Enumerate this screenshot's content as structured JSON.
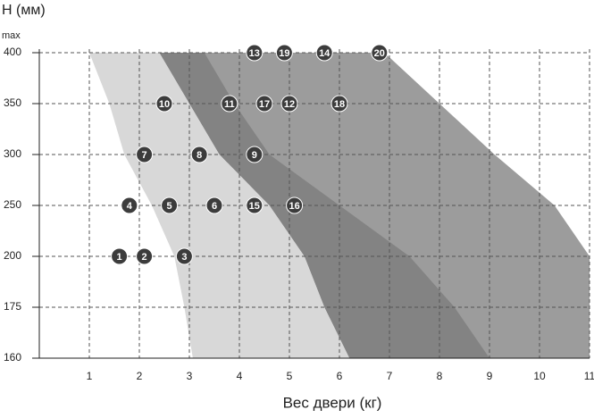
{
  "chart_data": {
    "type": "scatter",
    "y_label": "H (мм)",
    "y_note": "max",
    "x_label": "Вес двери (кг)",
    "xlim": [
      0,
      11
    ],
    "xticks": [
      1,
      2,
      3,
      4,
      5,
      6,
      7,
      8,
      9,
      10,
      11
    ],
    "y_scale": "ordinal",
    "yticks": [
      160,
      175,
      200,
      250,
      300,
      350,
      400
    ],
    "grid": true,
    "areas": [
      {
        "color": "#9c9c9c",
        "y": [
          400,
          350,
          300,
          250,
          200,
          175,
          160
        ],
        "x_left": [
          2.4,
          3.0,
          3.6,
          4.6,
          5.3,
          5.7,
          6.2
        ],
        "x_right": [
          6.9,
          8.0,
          9.1,
          10.3,
          11,
          11,
          11
        ]
      },
      {
        "color": "#838383",
        "y": [
          400,
          350,
          300,
          250,
          200,
          175,
          160
        ],
        "x_left": [
          2.4,
          3.0,
          3.6,
          4.6,
          5.3,
          5.7,
          6.2
        ],
        "x_right": [
          3.3,
          3.9,
          4.6,
          6.0,
          7.4,
          8.3,
          9.0
        ]
      },
      {
        "color": "#d8d8d8",
        "y": [
          400,
          350,
          300,
          250,
          200,
          175,
          160
        ],
        "x_left": [
          1.0,
          1.4,
          1.7,
          2.25,
          2.7,
          2.9,
          3.07
        ],
        "x_right": [
          2.4,
          3.0,
          3.6,
          4.6,
          5.3,
          5.7,
          6.2
        ]
      }
    ],
    "marker_color": "#3c3c3c",
    "labels": [
      "1",
      "2",
      "3",
      "4",
      "5",
      "6",
      "7",
      "8",
      "9",
      "10",
      "11",
      "12",
      "13",
      "14",
      "15",
      "16",
      "17",
      "18",
      "19",
      "20"
    ],
    "x": [
      1.6,
      2.1,
      2.9,
      1.8,
      2.6,
      3.5,
      2.1,
      3.2,
      4.3,
      2.5,
      3.8,
      5.0,
      4.3,
      5.7,
      4.3,
      5.1,
      4.5,
      6.0,
      4.9,
      6.8
    ],
    "y": [
      200,
      200,
      200,
      250,
      250,
      250,
      300,
      300,
      300,
      350,
      350,
      350,
      400,
      400,
      250,
      250,
      350,
      350,
      400,
      400
    ]
  }
}
